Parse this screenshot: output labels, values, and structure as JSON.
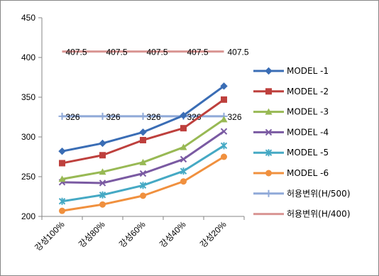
{
  "chart_data": {
    "type": "line",
    "categories": [
      "강성100%",
      "강성80%",
      "강성60%",
      "강성40%",
      "강성20%"
    ],
    "ylim": [
      200,
      450
    ],
    "yticks": [
      200,
      250,
      300,
      350,
      400,
      450
    ],
    "grid": "none",
    "legend_position": "right",
    "series": [
      {
        "name": "MODEL -1",
        "values": [
          282,
          292,
          306,
          327,
          364
        ],
        "color": "#3a6db5",
        "marker": "diamond"
      },
      {
        "name": "MODEL -2",
        "values": [
          267,
          277,
          296,
          311,
          347
        ],
        "color": "#be403d",
        "marker": "square"
      },
      {
        "name": "MODEL -3",
        "values": [
          247,
          256,
          268,
          287,
          322
        ],
        "color": "#98b954",
        "marker": "triangle"
      },
      {
        "name": "MODEL -4",
        "values": [
          243,
          242,
          254,
          272,
          307
        ],
        "color": "#7a5aa2",
        "marker": "x"
      },
      {
        "name": "MODEL -5",
        "values": [
          219,
          227,
          239,
          257,
          289
        ],
        "color": "#45a9c4",
        "marker": "star"
      },
      {
        "name": "MODEL -6",
        "values": [
          207,
          215,
          226,
          244,
          275
        ],
        "color": "#f0903e",
        "marker": "circle"
      },
      {
        "name": "허용변위(H/500)",
        "values": [
          326,
          326,
          326,
          326,
          326
        ],
        "color": "#8fa9d8",
        "marker": "plus",
        "data_labels": [
          "326",
          "326",
          "326",
          "326",
          "326"
        ]
      },
      {
        "name": "허용변위(H/400)",
        "values": [
          407.5,
          407.5,
          407.5,
          407.5,
          407.5
        ],
        "color": "#d99593",
        "marker": "none",
        "data_labels": [
          "407.5",
          "407.5",
          "407.5",
          "407.5",
          "407.5"
        ]
      }
    ]
  }
}
